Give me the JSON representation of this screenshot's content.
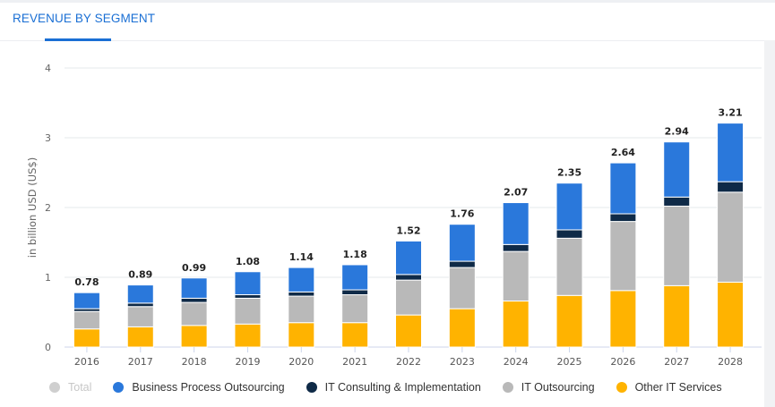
{
  "header": {
    "tab_label": "REVENUE BY SEGMENT"
  },
  "colors": {
    "bpo": "#2a78db",
    "consulting": "#0f2a47",
    "it_outsourcing": "#b9b9b9",
    "other": "#ffb300",
    "total_disabled": "#cfcfcf",
    "grid": "#e6e8eb",
    "accent": "#1a6fd4"
  },
  "chart_data": {
    "type": "bar",
    "stacked": true,
    "title": "REVENUE BY SEGMENT",
    "xlabel": "",
    "ylabel": "in billion USD (US$)",
    "ylim": [
      0,
      4
    ],
    "yticks": [
      0,
      1,
      2,
      3,
      4
    ],
    "grid": true,
    "legend_position": "bottom",
    "categories": [
      "2016",
      "2017",
      "2018",
      "2019",
      "2020",
      "2021",
      "2022",
      "2023",
      "2024",
      "2025",
      "2026",
      "2027",
      "2028"
    ],
    "totals": [
      0.78,
      0.89,
      0.99,
      1.08,
      1.14,
      1.18,
      1.52,
      1.76,
      2.07,
      2.35,
      2.64,
      2.94,
      3.21
    ],
    "series": [
      {
        "key": "other",
        "name": "Other IT Services",
        "values": [
          0.26,
          0.29,
          0.31,
          0.33,
          0.35,
          0.35,
          0.46,
          0.55,
          0.66,
          0.74,
          0.81,
          0.88,
          0.93
        ]
      },
      {
        "key": "it_outsourcing",
        "name": "IT Outsourcing",
        "values": [
          0.25,
          0.29,
          0.33,
          0.37,
          0.38,
          0.4,
          0.5,
          0.59,
          0.71,
          0.82,
          0.99,
          1.14,
          1.29
        ]
      },
      {
        "key": "consulting",
        "name": "IT Consulting & Implementation",
        "values": [
          0.04,
          0.05,
          0.06,
          0.05,
          0.06,
          0.07,
          0.08,
          0.09,
          0.1,
          0.12,
          0.11,
          0.13,
          0.15
        ]
      },
      {
        "key": "bpo",
        "name": "Business Process Outsourcing",
        "values": [
          0.23,
          0.26,
          0.29,
          0.33,
          0.35,
          0.36,
          0.48,
          0.53,
          0.6,
          0.67,
          0.73,
          0.79,
          0.84
        ]
      }
    ],
    "legend": [
      {
        "key": "total_disabled",
        "label": "Total",
        "enabled": false
      },
      {
        "key": "bpo",
        "label": "Business Process Outsourcing",
        "enabled": true
      },
      {
        "key": "consulting",
        "label": "IT Consulting & Implementation",
        "enabled": true
      },
      {
        "key": "it_outsourcing",
        "label": "IT Outsourcing",
        "enabled": true
      },
      {
        "key": "other",
        "label": "Other IT Services",
        "enabled": true
      }
    ]
  }
}
